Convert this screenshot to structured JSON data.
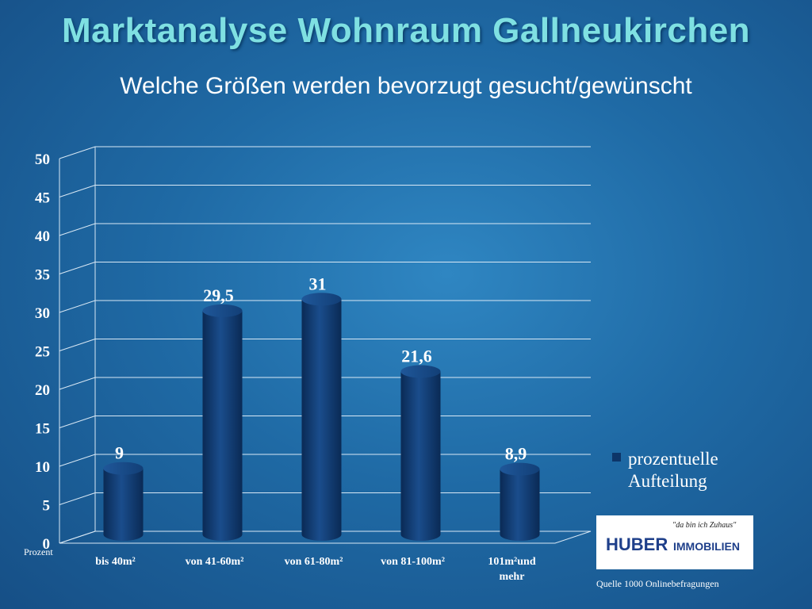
{
  "slide": {
    "title": "Marktanalyse Wohnraum Gallneukirchen",
    "subtitle": "Welche Größen werden bevorzugt gesucht/gewünscht",
    "source": "Quelle 1000 Onlinebefragungen"
  },
  "logo": {
    "slogan": "\"da bin ich Zuhaus\"",
    "brand": "HUBER",
    "suffix": "IMMOBILIEN"
  },
  "chart_data": {
    "type": "bar",
    "categories": [
      "bis 40m²",
      "von 41-60m²",
      "von 61-80m²",
      "von 81-100m²",
      "101m²und mehr"
    ],
    "category_lines": [
      [
        "bis 40m²"
      ],
      [
        "von 41-60m²"
      ],
      [
        "von 61-80m²"
      ],
      [
        "von 81-100m²"
      ],
      [
        "101m²und",
        "mehr"
      ]
    ],
    "series": [
      {
        "name": "prozentuelle Aufteilung",
        "values": [
          9,
          29.5,
          31,
          21.6,
          8.9
        ],
        "labels": [
          "9",
          "29,5",
          "31",
          "21,6",
          "8,9"
        ]
      }
    ],
    "ylabel": "Prozent",
    "ylim": [
      0,
      50
    ],
    "yticks": [
      0,
      5,
      10,
      15,
      20,
      25,
      30,
      35,
      40,
      45,
      50
    ],
    "grid": true,
    "legend_position": "right",
    "style_3d": true,
    "bar_color": "#0d3568"
  }
}
